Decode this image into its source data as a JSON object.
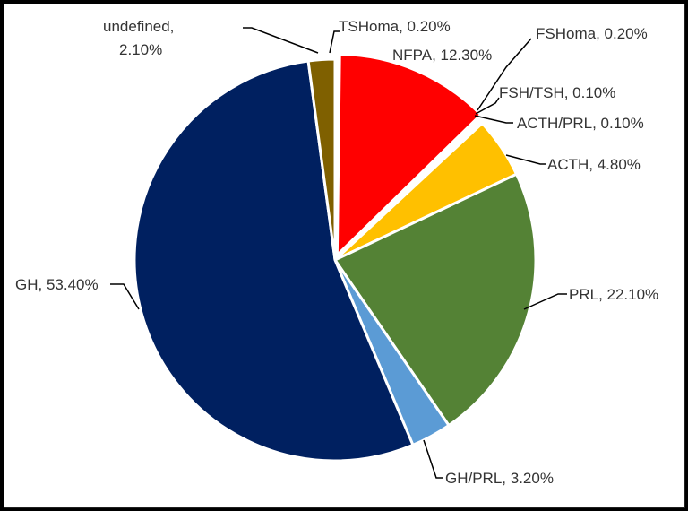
{
  "chart_data": {
    "type": "pie",
    "title": "",
    "slices": [
      {
        "name": "TSHoma",
        "value": 0.2,
        "label": "TSHoma, 0.20%",
        "color": "#A9B8C8"
      },
      {
        "name": "NFPA",
        "value": 12.3,
        "label": "NFPA, 12.30%",
        "color": "#FF0000"
      },
      {
        "name": "FSHoma",
        "value": 0.2,
        "label": "FSHoma, 0.20%",
        "color": "#F4B183"
      },
      {
        "name": "FSH/TSH",
        "value": 0.1,
        "label": "FSH/TSH, 0.10%",
        "color": "#7F7F7F"
      },
      {
        "name": "ACTH/PRL",
        "value": 0.1,
        "label": "ACTH/PRL, 0.10%",
        "color": "#A5A5A5"
      },
      {
        "name": "ACTH",
        "value": 4.8,
        "label": "ACTH, 4.80%",
        "color": "#FFC000"
      },
      {
        "name": "PRL",
        "value": 22.1,
        "label": "PRL, 22.10%",
        "color": "#548235"
      },
      {
        "name": "GH/PRL",
        "value": 3.2,
        "label": "GH/PRL, 3.20%",
        "color": "#5B9BD5"
      },
      {
        "name": "GH",
        "value": 53.4,
        "label": "GH, 53.40%",
        "color": "#002060"
      },
      {
        "name": "undefined",
        "value": 2.1,
        "label_line1": "undefined,",
        "label_line2": "2.10%",
        "color": "#7F6000"
      }
    ]
  }
}
